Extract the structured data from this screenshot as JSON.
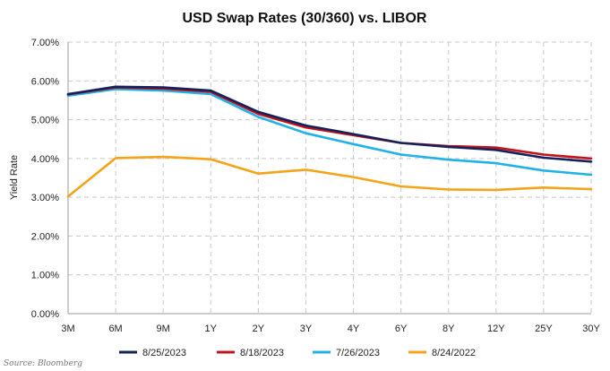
{
  "chart_data": {
    "type": "line",
    "title": "USD Swap Rates (30/360) vs. LIBOR",
    "xlabel": "",
    "ylabel": "Yield Rate",
    "categories": [
      "3M",
      "6M",
      "9M",
      "1Y",
      "2Y",
      "3Y",
      "4Y",
      "6Y",
      "8Y",
      "12Y",
      "25Y",
      "30Y"
    ],
    "ylim": [
      0,
      7
    ],
    "yticks": [
      "0.00%",
      "1.00%",
      "2.00%",
      "3.00%",
      "4.00%",
      "5.00%",
      "6.00%",
      "7.00%"
    ],
    "grid": true,
    "legend_position": "bottom",
    "series": [
      {
        "name": "8/25/2023",
        "color": "#14215a",
        "values": [
          5.66,
          5.85,
          5.83,
          5.75,
          5.2,
          4.85,
          4.63,
          4.4,
          4.3,
          4.22,
          4.02,
          3.92
        ]
      },
      {
        "name": "8/18/2023",
        "color": "#c0141a",
        "values": [
          5.65,
          5.83,
          5.8,
          5.72,
          5.15,
          4.8,
          4.6,
          4.4,
          4.32,
          4.28,
          4.1,
          4.0
        ]
      },
      {
        "name": "7/26/2023",
        "color": "#1fb2e8",
        "values": [
          5.62,
          5.79,
          5.75,
          5.66,
          5.07,
          4.65,
          4.37,
          4.1,
          3.97,
          3.88,
          3.69,
          3.58
        ]
      },
      {
        "name": "8/24/2022",
        "color": "#f5a31a",
        "values": [
          3.02,
          4.01,
          4.04,
          3.98,
          3.61,
          3.71,
          3.52,
          3.28,
          3.2,
          3.19,
          3.25,
          3.21
        ]
      }
    ]
  },
  "source": "Source: Bloomberg"
}
